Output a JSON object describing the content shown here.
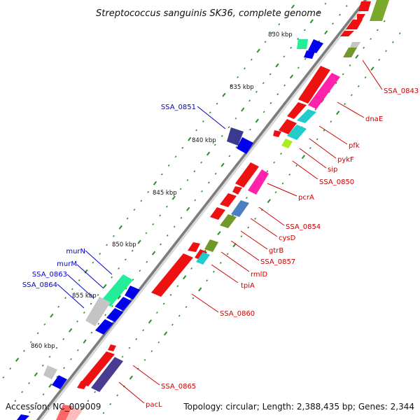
{
  "title": "Streptococcus sanguinis SK36, complete genome",
  "footer": {
    "accession": "Accession: NC_009009",
    "summary": "Topology: circular; Length: 2,388,435 bp; Genes: 2,344"
  },
  "colors": {
    "backbone": "#8a8a8a",
    "tick_major": "#2e8b2e",
    "tick_minor": "#2e8b2e",
    "forward_label": "#0000cc",
    "reverse_label": "#cc0000"
  },
  "ticks": [
    {
      "label": "830 kbp",
      "kbp": 830
    },
    {
      "label": "835 kbp",
      "kbp": 835
    },
    {
      "label": "840 kbp",
      "kbp": 840
    },
    {
      "label": "845 kbp",
      "kbp": 845
    },
    {
      "label": "850 kbp",
      "kbp": 850
    },
    {
      "label": "855 kbp",
      "kbp": 855
    },
    {
      "label": "860 kbp",
      "kbp": 860
    }
  ],
  "forward_labels": [
    {
      "id": "SSA_0851",
      "text": "SSA_0851"
    },
    {
      "id": "murN",
      "text": "murN"
    },
    {
      "id": "murM",
      "text": "murM"
    },
    {
      "id": "SSA_0863",
      "text": "SSA_0863"
    },
    {
      "id": "SSA_0864",
      "text": "SSA_0864"
    }
  ],
  "reverse_labels": [
    {
      "id": "SSA_0843",
      "text": "SSA_0843"
    },
    {
      "id": "dnaE",
      "text": "dnaE"
    },
    {
      "id": "pfk",
      "text": "pfk"
    },
    {
      "id": "pykF",
      "text": "pykF"
    },
    {
      "id": "sip",
      "text": "sip"
    },
    {
      "id": "SSA_0850",
      "text": "SSA_0850"
    },
    {
      "id": "pcrA",
      "text": "pcrA"
    },
    {
      "id": "SSA_0854",
      "text": "SSA_0854"
    },
    {
      "id": "cysD",
      "text": "cysD"
    },
    {
      "id": "gtrB",
      "text": "gtrB"
    },
    {
      "id": "SSA_0857",
      "text": "SSA_0857"
    },
    {
      "id": "rmlD",
      "text": "rmlD"
    },
    {
      "id": "tpiA",
      "text": "tpiA"
    },
    {
      "id": "SSA_0860",
      "text": "SSA_0860"
    },
    {
      "id": "SSA_0865",
      "text": "SSA_0865"
    },
    {
      "id": "pacL",
      "text": "pacL"
    }
  ]
}
